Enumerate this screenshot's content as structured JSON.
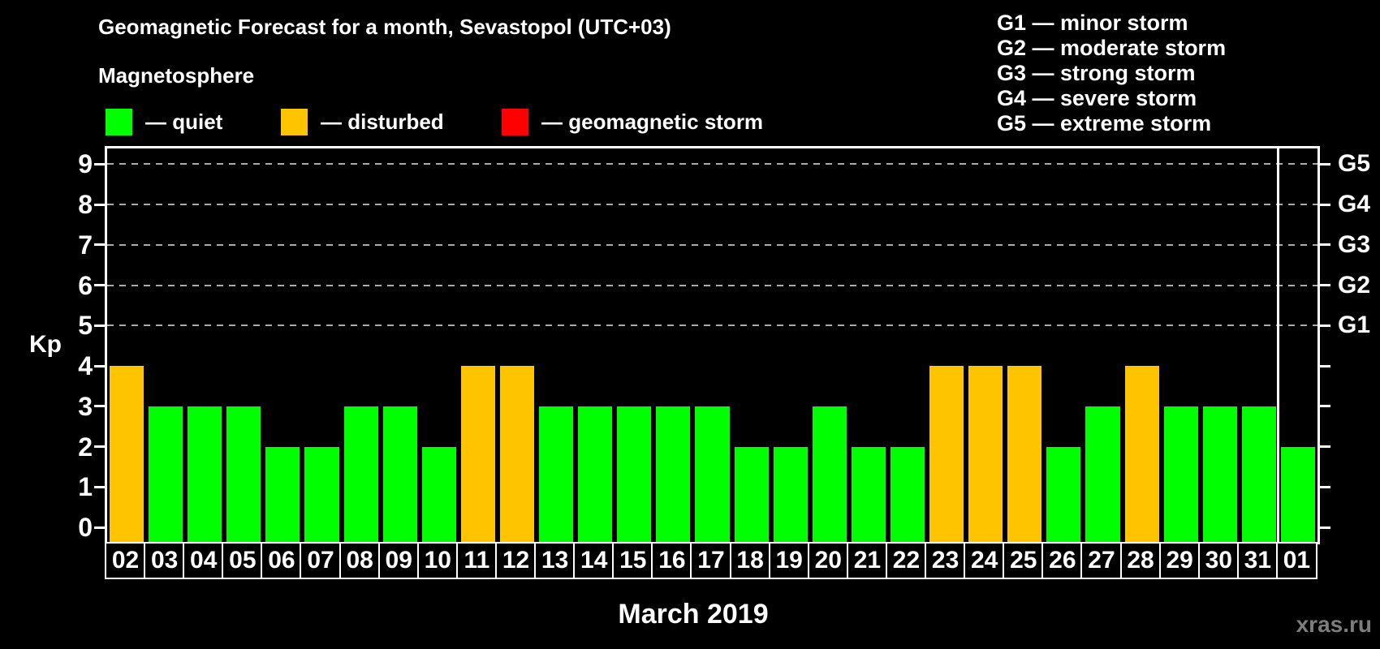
{
  "title": "Geomagnetic Forecast for a month, Sevastopol (UTC+03)",
  "subtitle": "Magnetosphere",
  "legend": {
    "items": [
      {
        "name": "quiet",
        "label": "— quiet",
        "color": "#00ff00"
      },
      {
        "name": "disturbed",
        "label": "— disturbed",
        "color": "#ffc400"
      },
      {
        "name": "storm",
        "label": "— geomagnetic storm",
        "color": "#ff0000"
      }
    ]
  },
  "g_scale_legend": [
    "G1 — minor storm",
    "G2 — moderate storm",
    "G3 — strong storm",
    "G4 — severe storm",
    "G5 — extreme storm"
  ],
  "watermark": "xras.ru",
  "chart_data": {
    "type": "bar",
    "title": "Geomagnetic Forecast for a month, Sevastopol (UTC+03)",
    "xlabel": "March 2019",
    "ylabel": "Kp",
    "ylim": [
      0,
      9
    ],
    "y_ticks": [
      0,
      1,
      2,
      3,
      4,
      5,
      6,
      7,
      8,
      9
    ],
    "gridlines_at": [
      5,
      6,
      7,
      8,
      9
    ],
    "grid": "dashed, only at G-storm levels 5-9",
    "legend_position": "top",
    "right_axis": [
      {
        "kp": 5,
        "label": "G1"
      },
      {
        "kp": 6,
        "label": "G2"
      },
      {
        "kp": 7,
        "label": "G3"
      },
      {
        "kp": 8,
        "label": "G4"
      },
      {
        "kp": 9,
        "label": "G5"
      }
    ],
    "colors": {
      "quiet": "#00ff00",
      "disturbed": "#ffc400",
      "storm": "#ff0000"
    },
    "separator_before_day": "01",
    "bars": [
      {
        "day": "02",
        "kp": 4,
        "status": "disturbed"
      },
      {
        "day": "03",
        "kp": 3,
        "status": "quiet"
      },
      {
        "day": "04",
        "kp": 3,
        "status": "quiet"
      },
      {
        "day": "05",
        "kp": 3,
        "status": "quiet"
      },
      {
        "day": "06",
        "kp": 2,
        "status": "quiet"
      },
      {
        "day": "07",
        "kp": 2,
        "status": "quiet"
      },
      {
        "day": "08",
        "kp": 3,
        "status": "quiet"
      },
      {
        "day": "09",
        "kp": 3,
        "status": "quiet"
      },
      {
        "day": "10",
        "kp": 2,
        "status": "quiet"
      },
      {
        "day": "11",
        "kp": 4,
        "status": "disturbed"
      },
      {
        "day": "12",
        "kp": 4,
        "status": "disturbed"
      },
      {
        "day": "13",
        "kp": 3,
        "status": "quiet"
      },
      {
        "day": "14",
        "kp": 3,
        "status": "quiet"
      },
      {
        "day": "15",
        "kp": 3,
        "status": "quiet"
      },
      {
        "day": "16",
        "kp": 3,
        "status": "quiet"
      },
      {
        "day": "17",
        "kp": 3,
        "status": "quiet"
      },
      {
        "day": "18",
        "kp": 2,
        "status": "quiet"
      },
      {
        "day": "19",
        "kp": 2,
        "status": "quiet"
      },
      {
        "day": "20",
        "kp": 3,
        "status": "quiet"
      },
      {
        "day": "21",
        "kp": 2,
        "status": "quiet"
      },
      {
        "day": "22",
        "kp": 2,
        "status": "quiet"
      },
      {
        "day": "23",
        "kp": 4,
        "status": "disturbed"
      },
      {
        "day": "24",
        "kp": 4,
        "status": "disturbed"
      },
      {
        "day": "25",
        "kp": 4,
        "status": "disturbed"
      },
      {
        "day": "26",
        "kp": 2,
        "status": "quiet"
      },
      {
        "day": "27",
        "kp": 3,
        "status": "quiet"
      },
      {
        "day": "28",
        "kp": 4,
        "status": "disturbed"
      },
      {
        "day": "29",
        "kp": 3,
        "status": "quiet"
      },
      {
        "day": "30",
        "kp": 3,
        "status": "quiet"
      },
      {
        "day": "31",
        "kp": 3,
        "status": "quiet"
      },
      {
        "day": "01",
        "kp": 2,
        "status": "quiet"
      }
    ]
  }
}
